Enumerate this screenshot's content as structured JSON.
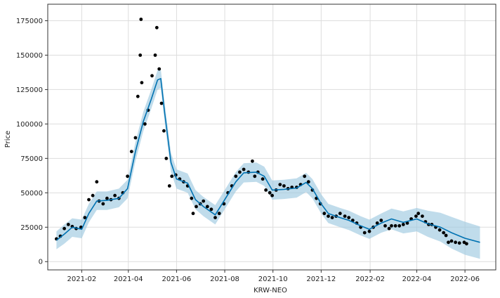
{
  "chart_data": {
    "type": "line",
    "title": "",
    "xlabel": "KRW-NEO",
    "ylabel": "Price",
    "x_ticks": [
      "2021-02",
      "2021-04",
      "2021-06",
      "2021-08",
      "2021-10",
      "2021-12",
      "2022-02",
      "2022-04",
      "2022-06"
    ],
    "y_ticks": [
      0,
      25000,
      50000,
      75000,
      100000,
      125000,
      150000,
      175000
    ],
    "y_tick_labels": [
      "0",
      "25000",
      "50000",
      "75000",
      "100000",
      "125000",
      "150000",
      "175000"
    ],
    "xlim": [
      "2020-12-20",
      "2022-07-10"
    ],
    "ylim": [
      -6000,
      187000
    ],
    "grid": true,
    "legend": "none",
    "series": [
      {
        "kind": "observed",
        "style": "black dots",
        "points": [
          [
            "2020-12-31",
            16500
          ],
          [
            "2021-01-05",
            18500
          ],
          [
            "2021-01-10",
            24000
          ],
          [
            "2021-01-15",
            27000
          ],
          [
            "2021-01-20",
            25500
          ],
          [
            "2021-01-25",
            24000
          ],
          [
            "2021-01-31",
            25000
          ],
          [
            "2021-02-05",
            32000
          ],
          [
            "2021-02-10",
            45000
          ],
          [
            "2021-02-15",
            48000
          ],
          [
            "2021-02-20",
            58000
          ],
          [
            "2021-02-23",
            44000
          ],
          [
            "2021-02-28",
            42000
          ],
          [
            "2021-03-05",
            46000
          ],
          [
            "2021-03-10",
            45000
          ],
          [
            "2021-03-15",
            48000
          ],
          [
            "2021-03-20",
            46000
          ],
          [
            "2021-03-25",
            50000
          ],
          [
            "2021-03-31",
            62000
          ],
          [
            "2021-04-05",
            80000
          ],
          [
            "2021-04-10",
            90000
          ],
          [
            "2021-04-13",
            120000
          ],
          [
            "2021-04-16",
            150000
          ],
          [
            "2021-04-17",
            176000
          ],
          [
            "2021-04-18",
            130000
          ],
          [
            "2021-04-22",
            100000
          ],
          [
            "2021-04-26",
            110000
          ],
          [
            "2021-05-01",
            135000
          ],
          [
            "2021-05-05",
            150000
          ],
          [
            "2021-05-07",
            170000
          ],
          [
            "2021-05-10",
            140000
          ],
          [
            "2021-05-13",
            115000
          ],
          [
            "2021-05-16",
            95000
          ],
          [
            "2021-05-19",
            75000
          ],
          [
            "2021-05-23",
            55000
          ],
          [
            "2021-05-26",
            62000
          ],
          [
            "2021-05-31",
            63000
          ],
          [
            "2021-06-05",
            60000
          ],
          [
            "2021-06-10",
            58000
          ],
          [
            "2021-06-15",
            55000
          ],
          [
            "2021-06-20",
            46000
          ],
          [
            "2021-06-22",
            35000
          ],
          [
            "2021-06-26",
            40000
          ],
          [
            "2021-07-01",
            42000
          ],
          [
            "2021-07-05",
            44000
          ],
          [
            "2021-07-10",
            40000
          ],
          [
            "2021-07-15",
            38000
          ],
          [
            "2021-07-20",
            32000
          ],
          [
            "2021-07-25",
            35000
          ],
          [
            "2021-07-31",
            42000
          ],
          [
            "2021-08-05",
            50000
          ],
          [
            "2021-08-10",
            55000
          ],
          [
            "2021-08-15",
            62000
          ],
          [
            "2021-08-20",
            65000
          ],
          [
            "2021-08-25",
            67000
          ],
          [
            "2021-08-31",
            65000
          ],
          [
            "2021-09-05",
            73000
          ],
          [
            "2021-09-08",
            62000
          ],
          [
            "2021-09-12",
            65000
          ],
          [
            "2021-09-18",
            60000
          ],
          [
            "2021-09-22",
            52000
          ],
          [
            "2021-09-27",
            50000
          ],
          [
            "2021-09-30",
            48000
          ],
          [
            "2021-10-05",
            52000
          ],
          [
            "2021-10-10",
            56000
          ],
          [
            "2021-10-15",
            55000
          ],
          [
            "2021-10-20",
            53000
          ],
          [
            "2021-10-25",
            54000
          ],
          [
            "2021-10-31",
            54000
          ],
          [
            "2021-11-05",
            56000
          ],
          [
            "2021-11-10",
            62000
          ],
          [
            "2021-11-15",
            58000
          ],
          [
            "2021-11-20",
            52000
          ],
          [
            "2021-11-25",
            46000
          ],
          [
            "2021-11-30",
            42000
          ],
          [
            "2021-12-05",
            35000
          ],
          [
            "2021-12-10",
            33000
          ],
          [
            "2021-12-15",
            32000
          ],
          [
            "2021-12-20",
            33000
          ],
          [
            "2021-12-25",
            35000
          ],
          [
            "2021-12-31",
            33000
          ],
          [
            "2022-01-05",
            32000
          ],
          [
            "2022-01-10",
            30000
          ],
          [
            "2022-01-15",
            28000
          ],
          [
            "2022-01-20",
            25000
          ],
          [
            "2022-01-25",
            21000
          ],
          [
            "2022-01-31",
            22000
          ],
          [
            "2022-02-05",
            25000
          ],
          [
            "2022-02-10",
            28000
          ],
          [
            "2022-02-15",
            30000
          ],
          [
            "2022-02-20",
            26000
          ],
          [
            "2022-02-25",
            24000
          ],
          [
            "2022-02-28",
            26000
          ],
          [
            "2022-03-05",
            26000
          ],
          [
            "2022-03-10",
            26000
          ],
          [
            "2022-03-15",
            27000
          ],
          [
            "2022-03-20",
            28000
          ],
          [
            "2022-03-25",
            31000
          ],
          [
            "2022-03-31",
            33000
          ],
          [
            "2022-04-03",
            35000
          ],
          [
            "2022-04-08",
            33000
          ],
          [
            "2022-04-12",
            29000
          ],
          [
            "2022-04-16",
            27000
          ],
          [
            "2022-04-20",
            27000
          ],
          [
            "2022-04-25",
            25000
          ],
          [
            "2022-04-30",
            23000
          ],
          [
            "2022-05-05",
            21000
          ],
          [
            "2022-05-08",
            19000
          ],
          [
            "2022-05-11",
            14000
          ],
          [
            "2022-05-15",
            15000
          ],
          [
            "2022-05-20",
            14000
          ],
          [
            "2022-05-25",
            13500
          ],
          [
            "2022-05-31",
            14000
          ],
          [
            "2022-06-03",
            13000
          ]
        ]
      },
      {
        "kind": "trend",
        "style": "blue line",
        "points": [
          [
            "2020-12-31",
            15500
          ],
          [
            "2021-01-10",
            20000
          ],
          [
            "2021-01-20",
            25000
          ],
          [
            "2021-02-01",
            23500
          ],
          [
            "2021-02-10",
            35000
          ],
          [
            "2021-02-20",
            44000
          ],
          [
            "2021-03-05",
            44500
          ],
          [
            "2021-03-20",
            46000
          ],
          [
            "2021-03-31",
            53000
          ],
          [
            "2021-04-10",
            80000
          ],
          [
            "2021-04-20",
            102000
          ],
          [
            "2021-04-30",
            118000
          ],
          [
            "2021-05-08",
            132000
          ],
          [
            "2021-05-12",
            133000
          ],
          [
            "2021-05-17",
            108000
          ],
          [
            "2021-05-25",
            72000
          ],
          [
            "2021-06-01",
            60000
          ],
          [
            "2021-06-15",
            57000
          ],
          [
            "2021-06-25",
            45000
          ],
          [
            "2021-07-05",
            40000
          ],
          [
            "2021-07-20",
            34000
          ],
          [
            "2021-08-01",
            45000
          ],
          [
            "2021-08-15",
            58000
          ],
          [
            "2021-08-25",
            64500
          ],
          [
            "2021-09-10",
            65000
          ],
          [
            "2021-09-20",
            62000
          ],
          [
            "2021-09-30",
            52000
          ],
          [
            "2021-10-15",
            52500
          ],
          [
            "2021-10-31",
            53500
          ],
          [
            "2021-11-12",
            57500
          ],
          [
            "2021-11-20",
            53000
          ],
          [
            "2021-12-01",
            42000
          ],
          [
            "2021-12-10",
            35000
          ],
          [
            "2021-12-25",
            32000
          ],
          [
            "2022-01-05",
            30000
          ],
          [
            "2022-01-20",
            26000
          ],
          [
            "2022-01-31",
            23500
          ],
          [
            "2022-02-15",
            28000
          ],
          [
            "2022-02-28",
            31000
          ],
          [
            "2022-03-15",
            28500
          ],
          [
            "2022-04-01",
            31000
          ],
          [
            "2022-04-15",
            27500
          ],
          [
            "2022-05-01",
            25000
          ],
          [
            "2022-05-15",
            21000
          ],
          [
            "2022-06-01",
            17000
          ],
          [
            "2022-06-20",
            14000
          ]
        ]
      },
      {
        "kind": "uncertainty-band",
        "style": "light blue fill",
        "points": [
          [
            "2020-12-31",
            9000,
            22000
          ],
          [
            "2021-01-10",
            13000,
            27000
          ],
          [
            "2021-01-20",
            18000,
            31500
          ],
          [
            "2021-02-01",
            17000,
            30500
          ],
          [
            "2021-02-10",
            28500,
            42000
          ],
          [
            "2021-02-20",
            37500,
            51000
          ],
          [
            "2021-03-05",
            37500,
            51000
          ],
          [
            "2021-03-20",
            39500,
            53000
          ],
          [
            "2021-03-31",
            46000,
            59500
          ],
          [
            "2021-04-10",
            73000,
            87000
          ],
          [
            "2021-04-20",
            95000,
            109000
          ],
          [
            "2021-04-30",
            111000,
            125000
          ],
          [
            "2021-05-08",
            125000,
            139000
          ],
          [
            "2021-05-12",
            126000,
            140000
          ],
          [
            "2021-05-17",
            101000,
            115000
          ],
          [
            "2021-05-25",
            65000,
            79000
          ],
          [
            "2021-06-01",
            53000,
            67000
          ],
          [
            "2021-06-15",
            50000,
            64000
          ],
          [
            "2021-06-25",
            38000,
            52000
          ],
          [
            "2021-07-05",
            33000,
            47000
          ],
          [
            "2021-07-20",
            27000,
            41000
          ],
          [
            "2021-08-01",
            38000,
            52000
          ],
          [
            "2021-08-15",
            51000,
            65000
          ],
          [
            "2021-08-25",
            57500,
            71500
          ],
          [
            "2021-09-10",
            58000,
            72000
          ],
          [
            "2021-09-20",
            55000,
            69000
          ],
          [
            "2021-09-30",
            45000,
            59000
          ],
          [
            "2021-10-15",
            45500,
            59500
          ],
          [
            "2021-10-31",
            46500,
            60500
          ],
          [
            "2021-11-12",
            50500,
            64500
          ],
          [
            "2021-11-20",
            46000,
            60000
          ],
          [
            "2021-12-01",
            35000,
            49000
          ],
          [
            "2021-12-10",
            28000,
            42000
          ],
          [
            "2021-12-25",
            25000,
            39000
          ],
          [
            "2022-01-05",
            23000,
            37000
          ],
          [
            "2022-01-20",
            19000,
            33000
          ],
          [
            "2022-01-31",
            16500,
            30500
          ],
          [
            "2022-02-15",
            21000,
            35000
          ],
          [
            "2022-02-28",
            23500,
            38500
          ],
          [
            "2022-03-15",
            20500,
            36500
          ],
          [
            "2022-04-01",
            22000,
            39000
          ],
          [
            "2022-04-15",
            18000,
            37000
          ],
          [
            "2022-05-01",
            14500,
            35500
          ],
          [
            "2022-05-15",
            9500,
            32500
          ],
          [
            "2022-06-01",
            5000,
            29000
          ],
          [
            "2022-06-20",
            2000,
            25500
          ]
        ]
      }
    ],
    "colors": {
      "points": "#000000",
      "trend": "#0072B2",
      "band": "#9ecae1",
      "grid": "#dddddd",
      "axis": "#333333"
    }
  }
}
